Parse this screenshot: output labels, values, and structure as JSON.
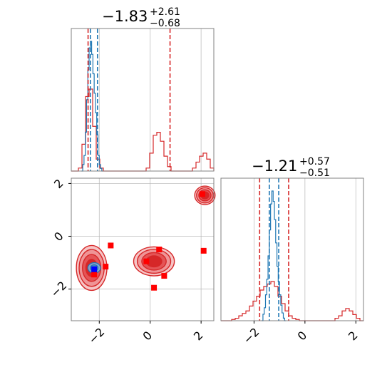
{
  "colors": {
    "red": "#d62728",
    "red_light": "#f0a0a2",
    "blue": "#1f77b4",
    "blue_marker": "#0000ff",
    "marker_red": "#ff0000"
  },
  "chart_data": [
    {
      "type": "histogram",
      "panel": "top-left marginal",
      "title": {
        "main": "−1.83",
        "sup": "+2.61",
        "sub": "−0.68"
      },
      "xlim": [
        -3.1,
        2.5
      ],
      "grid": true,
      "series": [
        {
          "name": "",
          "color": "#d62728",
          "style": "step",
          "x": [
            -3.1,
            -2.96,
            -2.82,
            -2.68,
            -2.54,
            -2.4,
            -2.26,
            -2.12,
            -1.98,
            -1.84,
            -1.7,
            -1.56,
            -1.42,
            -1.28,
            -1.14,
            -1.0,
            -0.86,
            -0.72,
            -0.58,
            -0.44,
            -0.3,
            -0.16,
            -0.02,
            0.12,
            0.26,
            0.4,
            0.54,
            0.68,
            0.82,
            0.96,
            1.1,
            1.24,
            1.38,
            1.52,
            1.66,
            1.8,
            1.94,
            2.08,
            2.22,
            2.36
          ],
          "y": [
            0.0,
            0.0,
            0.02,
            0.18,
            0.5,
            0.55,
            0.3,
            0.08,
            0.02,
            0.0,
            0.0,
            0.0,
            0.0,
            0.0,
            0.0,
            0.0,
            0.0,
            0.0,
            0.0,
            0.0,
            0.0,
            0.02,
            0.12,
            0.24,
            0.26,
            0.2,
            0.1,
            0.03,
            0.0,
            0.0,
            0.0,
            0.0,
            0.0,
            0.0,
            0.02,
            0.06,
            0.1,
            0.12,
            0.08,
            0.02
          ]
        },
        {
          "name": "",
          "color": "#1f77b4",
          "style": "step",
          "x": [
            -2.7,
            -2.65,
            -2.6,
            -2.55,
            -2.5,
            -2.45,
            -2.4,
            -2.35,
            -2.3,
            -2.25,
            -2.2,
            -2.15,
            -2.1,
            -2.05,
            -2.0,
            -1.95,
            -1.9
          ],
          "y": [
            0.0,
            0.05,
            0.12,
            0.3,
            0.55,
            0.78,
            0.95,
            1.0,
            0.9,
            0.75,
            0.6,
            0.45,
            0.28,
            0.12,
            0.05,
            0.02,
            0.0
          ]
        }
      ],
      "vlines": [
        {
          "x": -2.44,
          "color": "#d62728"
        },
        {
          "x": 0.78,
          "color": "#d62728"
        },
        {
          "x": -2.35,
          "color": "#1f77b4"
        },
        {
          "x": -2.07,
          "color": "#1f77b4"
        }
      ]
    },
    {
      "type": "contour",
      "panel": "bottom-left joint",
      "xlim": [
        -3.1,
        2.5
      ],
      "ylim": [
        -3.2,
        2.2
      ],
      "yticks": [
        "−2",
        "0",
        "2"
      ],
      "grid": true,
      "red_regions": [
        {
          "cx": -2.3,
          "cy": -1.2,
          "rx": 0.6,
          "ry": 0.85
        },
        {
          "cx": 0.15,
          "cy": -0.95,
          "rx": 0.8,
          "ry": 0.55
        },
        {
          "cx": 2.15,
          "cy": 1.55,
          "rx": 0.4,
          "ry": 0.35
        }
      ],
      "blue_region": {
        "cx": -2.2,
        "cy": -1.2,
        "rx": 0.25,
        "ry": 0.2
      },
      "red_markers": [
        {
          "x": -1.55,
          "y": -0.35
        },
        {
          "x": -1.75,
          "y": -1.15
        },
        {
          "x": -2.2,
          "y": -1.45
        },
        {
          "x": -0.15,
          "y": -0.95
        },
        {
          "x": 0.35,
          "y": -0.5
        },
        {
          "x": 0.55,
          "y": -1.5
        },
        {
          "x": 0.15,
          "y": -1.95
        },
        {
          "x": 2.1,
          "y": -0.55
        },
        {
          "x": 2.05,
          "y": 1.6
        }
      ],
      "blue_markers": [
        {
          "x": -2.2,
          "y": -1.25
        }
      ]
    },
    {
      "type": "histogram",
      "panel": "bottom-right marginal",
      "title": {
        "main": "−1.21",
        "sup": "+0.57",
        "sub": "−0.51"
      },
      "xlim": [
        -3.3,
        2.3
      ],
      "xticks": [
        "−2",
        "0",
        "2"
      ],
      "grid": true,
      "series": [
        {
          "name": "",
          "color": "#d62728",
          "style": "step",
          "x": [
            -3.3,
            -3.16,
            -3.02,
            -2.88,
            -2.74,
            -2.6,
            -2.46,
            -2.32,
            -2.18,
            -2.04,
            -1.9,
            -1.76,
            -1.62,
            -1.48,
            -1.34,
            -1.2,
            -1.06,
            -0.92,
            -0.78,
            -0.64,
            -0.5,
            -0.36,
            -0.22,
            -0.08,
            0.06,
            0.2,
            0.34,
            0.48,
            0.62,
            0.76,
            0.9,
            1.04,
            1.18,
            1.32,
            1.46,
            1.6,
            1.74,
            1.88,
            2.02,
            2.16
          ],
          "y": [
            0.0,
            0.0,
            0.0,
            0.01,
            0.02,
            0.04,
            0.06,
            0.08,
            0.12,
            0.16,
            0.2,
            0.25,
            0.28,
            0.3,
            0.32,
            0.28,
            0.2,
            0.14,
            0.08,
            0.04,
            0.02,
            0.01,
            0.0,
            0.0,
            0.0,
            0.0,
            0.0,
            0.0,
            0.0,
            0.0,
            0.0,
            0.0,
            0.02,
            0.04,
            0.08,
            0.1,
            0.08,
            0.05,
            0.02,
            0.0
          ]
        },
        {
          "name": "",
          "color": "#1f77b4",
          "style": "step",
          "x": [
            -1.7,
            -1.65,
            -1.6,
            -1.55,
            -1.5,
            -1.45,
            -1.4,
            -1.35,
            -1.3,
            -1.25,
            -1.2,
            -1.15,
            -1.1,
            -1.05,
            -1.0,
            -0.95,
            -0.9,
            -0.85,
            -0.8
          ],
          "y": [
            0.0,
            0.05,
            0.1,
            0.2,
            0.32,
            0.5,
            0.7,
            0.9,
            1.0,
            0.92,
            0.78,
            0.6,
            0.42,
            0.3,
            0.2,
            0.12,
            0.06,
            0.02,
            0.0
          ]
        }
      ],
      "vlines": [
        {
          "x": -1.78,
          "color": "#d62728"
        },
        {
          "x": -0.64,
          "color": "#d62728"
        },
        {
          "x": -1.4,
          "color": "#1f77b4"
        },
        {
          "x": -1.03,
          "color": "#1f77b4"
        }
      ]
    }
  ],
  "bottom_left_xticks": [
    "−2",
    "0",
    "2"
  ]
}
